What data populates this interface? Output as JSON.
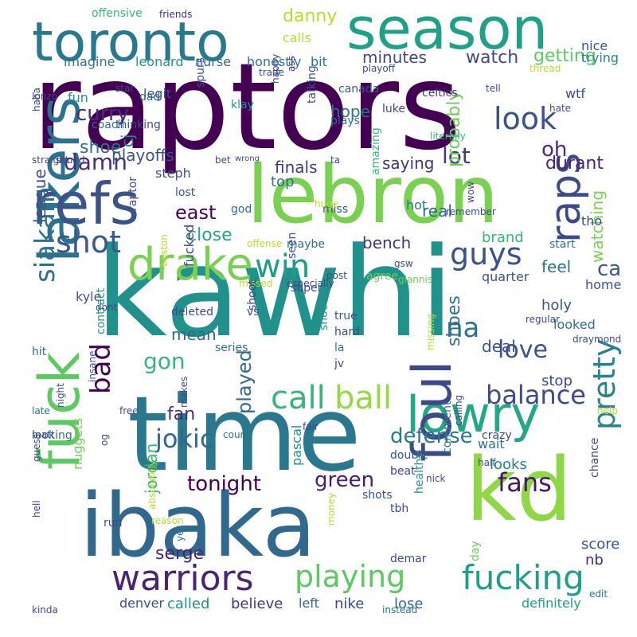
{
  "words": [
    {
      "text": "raptors",
      "color": "#440154"
    },
    {
      "text": "kawhi",
      "color": "#21918c"
    },
    {
      "text": "time",
      "color": "#2a788e"
    },
    {
      "text": "lebron",
      "color": "#7ad151"
    },
    {
      "text": "ibaka",
      "color": "#31688e"
    },
    {
      "text": "kd",
      "color": "#8fd744"
    },
    {
      "text": "season",
      "color": "#1fa187"
    },
    {
      "text": "toronto",
      "color": "#2a788e"
    },
    {
      "text": "lakers",
      "color": "#2c728e"
    },
    {
      "text": "fuck",
      "color": "#5ec962"
    },
    {
      "text": "refs",
      "color": "#3b528b"
    },
    {
      "text": "lowry",
      "color": "#22a884"
    },
    {
      "text": "foul",
      "color": "#3e4989"
    },
    {
      "text": "drake",
      "color": "#7ad151"
    },
    {
      "text": "warriors",
      "color": "#482475"
    },
    {
      "text": "fucking",
      "color": "#1f9e89"
    },
    {
      "text": "raps",
      "color": "#3e4989"
    },
    {
      "text": "call",
      "color": "#35b779"
    },
    {
      "text": "ball",
      "color": "#95d840"
    },
    {
      "text": "shot",
      "color": "#38598c"
    },
    {
      "text": "win",
      "color": "#1f9e89"
    },
    {
      "text": "guys",
      "color": "#3b528b"
    },
    {
      "text": "balance",
      "color": "#3e4a89"
    },
    {
      "text": "playing",
      "color": "#5ec962"
    },
    {
      "text": "love",
      "color": "#3b528b"
    },
    {
      "text": "pretty",
      "color": "#26828e"
    },
    {
      "text": "fans",
      "color": "#481668"
    },
    {
      "text": "siakam",
      "color": "#2c728e"
    },
    {
      "text": "na",
      "color": "#2c728e"
    },
    {
      "text": "bad",
      "color": "#440154"
    },
    {
      "text": "look",
      "color": "#3b528b"
    },
    {
      "text": "jokic",
      "color": "#31688e"
    },
    {
      "text": "damn",
      "color": "#472c7a"
    },
    {
      "text": "curry",
      "color": "#472d7b"
    },
    {
      "text": "gon",
      "color": "#35b779"
    },
    {
      "text": "tonight",
      "color": "#440154"
    },
    {
      "text": "green",
      "color": "#481b6d"
    },
    {
      "text": "defense",
      "color": "#2a788e"
    },
    {
      "text": "ca",
      "color": "#38598c"
    },
    {
      "text": "oh",
      "color": "#472d7b"
    },
    {
      "text": "lot",
      "color": "#443983"
    },
    {
      "text": "danny",
      "color": "#b5de2b"
    },
    {
      "text": "watch",
      "color": "#3e4989"
    },
    {
      "text": "getting",
      "color": "#5ec962"
    },
    {
      "text": "minutes",
      "color": "#3e4a89"
    },
    {
      "text": "finals",
      "color": "#443983"
    },
    {
      "text": "durant",
      "color": "#482475"
    },
    {
      "text": "bench",
      "color": "#46337f"
    },
    {
      "text": "close",
      "color": "#22a884"
    },
    {
      "text": "east",
      "color": "#440154"
    },
    {
      "text": "played",
      "color": "#31688e"
    },
    {
      "text": "fan",
      "color": "#472d7b"
    },
    {
      "text": "shoes",
      "color": "#2c728e"
    },
    {
      "text": "shoe",
      "color": "#2c728e"
    },
    {
      "text": "playoffs",
      "color": "#3b528b"
    },
    {
      "text": "league",
      "color": "#3b528b"
    },
    {
      "text": "saying",
      "color": "#46337f"
    },
    {
      "text": "probably",
      "color": "#6ece58"
    },
    {
      "text": "hope",
      "color": "#2c728e"
    },
    {
      "text": "brand",
      "color": "#35b779"
    },
    {
      "text": "watching",
      "color": "#7ad151"
    },
    {
      "text": "feel",
      "color": "#2c728e"
    },
    {
      "text": "real",
      "color": "#31688e"
    },
    {
      "text": "quarter",
      "color": "#3b528b"
    },
    {
      "text": "deal",
      "color": "#3b528b"
    },
    {
      "text": "mean",
      "color": "#31688e"
    },
    {
      "text": "jordan",
      "color": "#35b779"
    },
    {
      "text": "serge",
      "color": "#482475"
    },
    {
      "text": "called",
      "color": "#21918c"
    },
    {
      "text": "believe",
      "color": "#46337f"
    },
    {
      "text": "nike",
      "color": "#3e4989"
    },
    {
      "text": "lose",
      "color": "#31688e"
    },
    {
      "text": "definitely",
      "color": "#1f9e89"
    },
    {
      "text": "denver",
      "color": "#3e4a89"
    },
    {
      "text": "left",
      "color": "#31688e"
    },
    {
      "text": "nb",
      "color": "#482878"
    },
    {
      "text": "score",
      "color": "#3b528b"
    },
    {
      "text": "looks",
      "color": "#26828e"
    },
    {
      "text": "wait",
      "color": "#2c728e"
    },
    {
      "text": "stop",
      "color": "#3e4a89"
    },
    {
      "text": "holy",
      "color": "#3b528b"
    },
    {
      "text": "looked",
      "color": "#2c728e"
    },
    {
      "text": "home",
      "color": "#3b528b"
    },
    {
      "text": "nice",
      "color": "#3b528b"
    },
    {
      "text": "trying",
      "color": "#26828e"
    },
    {
      "text": "wtf",
      "color": "#3e4989"
    },
    {
      "text": "offensive",
      "color": "#35b779"
    },
    {
      "text": "friends",
      "color": "#472c7a"
    },
    {
      "text": "calls",
      "color": "#b5de2b"
    },
    {
      "text": "imagine",
      "color": "#2c728e"
    },
    {
      "text": "leonard",
      "color": "#21918c"
    },
    {
      "text": "nurse",
      "color": "#31688e"
    },
    {
      "text": "honestly",
      "color": "#2c728e"
    },
    {
      "text": "bit",
      "color": "#2c728e"
    },
    {
      "text": "canada",
      "color": "#3b528b"
    },
    {
      "text": "celtics",
      "color": "#46337f"
    },
    {
      "text": "luke",
      "color": "#3e4989"
    },
    {
      "text": "legit",
      "color": "#3b528b"
    },
    {
      "text": "fun",
      "color": "#21918c"
    },
    {
      "text": "dad",
      "color": "#31688e"
    },
    {
      "text": "coach",
      "color": "#2c728e"
    },
    {
      "text": "spurs",
      "color": "#3b528b"
    },
    {
      "text": "talking",
      "color": "#3b528b"
    },
    {
      "text": "plays",
      "color": "#2c728e"
    },
    {
      "text": "ass",
      "color": "#482475"
    },
    {
      "text": "happy",
      "color": "#3e4989"
    },
    {
      "text": "klay",
      "color": "#21918c"
    },
    {
      "text": "cj",
      "color": "#26828e"
    },
    {
      "text": "top",
      "color": "#2c728e"
    },
    {
      "text": "steph",
      "color": "#3b528b"
    },
    {
      "text": "lost",
      "color": "#38598c"
    },
    {
      "text": "god",
      "color": "#2c728e"
    },
    {
      "text": "amazing",
      "color": "#35b779"
    },
    {
      "text": "miss",
      "color": "#3b528b"
    },
    {
      "text": "hot",
      "color": "#2c728e"
    },
    {
      "text": "tho",
      "color": "#3e4989"
    },
    {
      "text": "raptor",
      "color": "#3e4989"
    },
    {
      "text": "maybe",
      "color": "#2c728e"
    },
    {
      "text": "start",
      "color": "#2c728e"
    },
    {
      "text": "seen",
      "color": "#3b528b"
    },
    {
      "text": "agree",
      "color": "#6ece58"
    },
    {
      "text": "kyle",
      "color": "#3b528b"
    },
    {
      "text": "fucked",
      "color": "#3e4989"
    },
    {
      "text": "deleted",
      "color": "#3e4989"
    },
    {
      "text": "true",
      "color": "#3b528b"
    },
    {
      "text": "hard",
      "color": "#3e4989"
    },
    {
      "text": "vs",
      "color": "#3e4989"
    },
    {
      "text": "shooting",
      "color": "#21918c"
    },
    {
      "text": "la",
      "color": "#2c728e"
    },
    {
      "text": "jv",
      "color": "#3e4989"
    },
    {
      "text": "hit",
      "color": "#2c728e"
    },
    {
      "text": "series",
      "color": "#2c728e"
    },
    {
      "text": "contract",
      "color": "#21918c"
    },
    {
      "text": "insane",
      "color": "#3b528b"
    },
    {
      "text": "night",
      "color": "#3b528b"
    },
    {
      "text": "makes",
      "color": "#3e4989"
    },
    {
      "text": "looking",
      "color": "#2c728e"
    },
    {
      "text": "guess",
      "color": "#3e4989"
    },
    {
      "text": "og",
      "color": "#3e4989"
    },
    {
      "text": "nuggets",
      "color": "#6ece58"
    },
    {
      "text": "run",
      "color": "#3e4989"
    },
    {
      "text": "hell",
      "color": "#3e4989"
    },
    {
      "text": "pascal",
      "color": "#21918c"
    },
    {
      "text": "shots",
      "color": "#3b528b"
    },
    {
      "text": "beat",
      "color": "#3e4989"
    },
    {
      "text": "double",
      "color": "#3b528b"
    },
    {
      "text": "healthy",
      "color": "#21918c"
    },
    {
      "text": "comment",
      "color": "#2c728e"
    },
    {
      "text": "demar",
      "color": "#3e4989"
    },
    {
      "text": "day",
      "color": "#6ece58"
    },
    {
      "text": "tbh",
      "color": "#3e4989"
    },
    {
      "text": "half",
      "color": "#3b528b"
    },
    {
      "text": "nick",
      "color": "#3e4989"
    },
    {
      "text": "crazy",
      "color": "#3e4989"
    },
    {
      "text": "chance",
      "color": "#3e4989"
    },
    {
      "text": "edit",
      "color": "#2c728e"
    },
    {
      "text": "kinda",
      "color": "#3e4989"
    },
    {
      "text": "instead",
      "color": "#2c728e"
    },
    {
      "text": "money",
      "color": "#b5de2b"
    },
    {
      "text": "absolutely",
      "color": "#b5de2b"
    },
    {
      "text": "yes",
      "color": "#2c728e"
    },
    {
      "text": "reason",
      "color": "#b5de2b"
    },
    {
      "text": "free",
      "color": "#3e4989"
    },
    {
      "text": "late",
      "color": "#2c728e"
    },
    {
      "text": "matt",
      "color": "#3e4989"
    },
    {
      "text": "court",
      "color": "#2c728e"
    },
    {
      "text": "fair",
      "color": "#3e4989"
    },
    {
      "text": "calling",
      "color": "#3e4989"
    },
    {
      "text": "help",
      "color": "#b5de2b"
    },
    {
      "text": "draymond",
      "color": "#3e4989"
    },
    {
      "text": "regular",
      "color": "#3e4989"
    },
    {
      "text": "missing",
      "color": "#b5de2b"
    },
    {
      "text": "especially",
      "color": "#3e4989"
    },
    {
      "text": "missed",
      "color": "#b5de2b"
    },
    {
      "text": "dont",
      "color": "#3e4989"
    },
    {
      "text": "boston",
      "color": "#b5de2b"
    },
    {
      "text": "offense",
      "color": "#b5de2b"
    },
    {
      "text": "post",
      "color": "#3e4989"
    },
    {
      "text": "gsw",
      "color": "#3e4989"
    },
    {
      "text": "giannis",
      "color": "#6ece58"
    },
    {
      "text": "shoot",
      "color": "#3e4989"
    },
    {
      "text": "super",
      "color": "#3e4989"
    },
    {
      "text": "huge",
      "color": "#b5de2b"
    },
    {
      "text": "bet",
      "color": "#3e4989"
    },
    {
      "text": "wrong",
      "color": "#3e4989"
    },
    {
      "text": "remember",
      "color": "#3e4989"
    },
    {
      "text": "wow",
      "color": "#3e4989"
    },
    {
      "text": "straight",
      "color": "#3e4989"
    },
    {
      "text": "squad",
      "color": "#3e4989"
    },
    {
      "text": "ta",
      "color": "#3e4989"
    },
    {
      "text": "literally",
      "color": "#35b779"
    },
    {
      "text": "haha",
      "color": "#3e4989"
    },
    {
      "text": "thinking",
      "color": "#3e4989"
    },
    {
      "text": "hate",
      "color": "#3e4989"
    },
    {
      "text": "star",
      "color": "#3e4989"
    },
    {
      "text": "lonzo",
      "color": "#3e4989"
    },
    {
      "text": "trade",
      "color": "#3e4989"
    },
    {
      "text": "playoff",
      "color": "#3e4989"
    },
    {
      "text": "thread",
      "color": "#b5de2b"
    },
    {
      "text": "tell",
      "color": "#3e4989"
    }
  ]
}
